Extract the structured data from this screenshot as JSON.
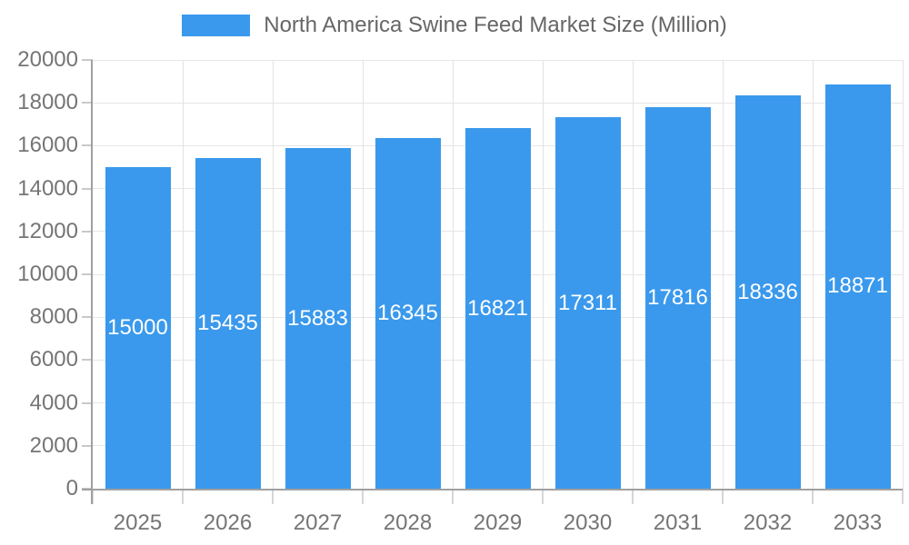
{
  "legend": {
    "label": "North America Swine Feed Market Size (Million)"
  },
  "chart_data": {
    "type": "bar",
    "title": "North America Swine Feed Market Size (Million)",
    "categories": [
      "2025",
      "2026",
      "2027",
      "2028",
      "2029",
      "2030",
      "2031",
      "2032",
      "2033"
    ],
    "values": [
      15000,
      15435,
      15883,
      16345,
      16821,
      17311,
      17816,
      18336,
      18871
    ],
    "value_labels": [
      "15000",
      "15435",
      "15883",
      "16345",
      "16821",
      "17311",
      "17816",
      "18336",
      "18871"
    ],
    "xlabel": "",
    "ylabel": "",
    "ylim": [
      0,
      20000
    ],
    "ytick_step": 2000,
    "ytick_labels": [
      "0",
      "2000",
      "4000",
      "6000",
      "8000",
      "10000",
      "12000",
      "14000",
      "16000",
      "18000",
      "20000"
    ],
    "grid": true,
    "legend_position": "top-center",
    "colors": {
      "bar": "#3A99EC",
      "value_label": "#ffffff",
      "axis_text": "#757575",
      "legend_text": "#666666",
      "axis_line": "#a0a0a0",
      "gridline": "#e6e6e6",
      "background": "#ffffff"
    }
  }
}
